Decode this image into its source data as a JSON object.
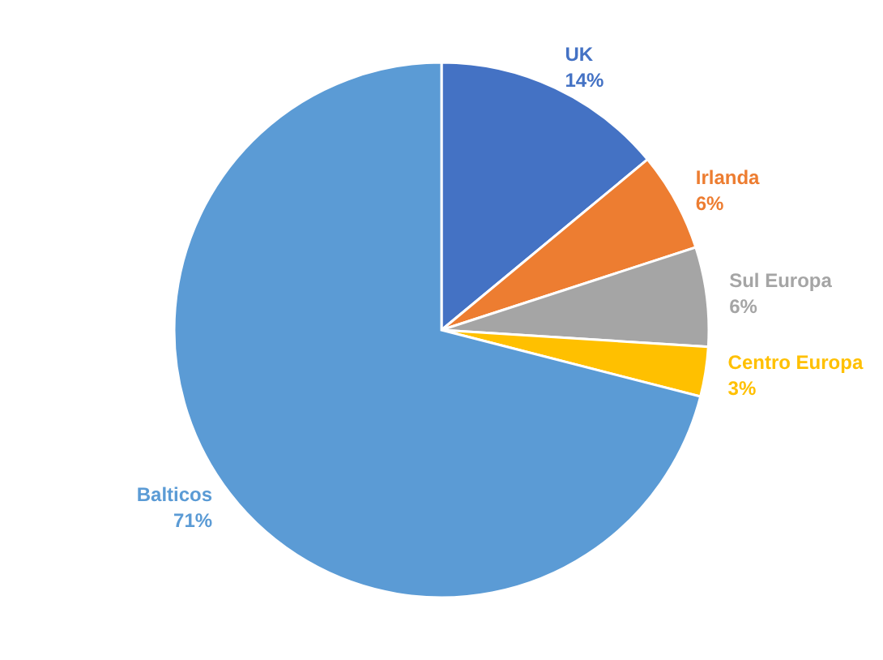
{
  "chart_data": {
    "type": "pie",
    "categories": [
      "UK",
      "Irlanda",
      "Sul Europa",
      "Centro Europa",
      "Balticos"
    ],
    "values": [
      14,
      6,
      6,
      3,
      71
    ],
    "colors": [
      "#4472c4",
      "#ed7d31",
      "#a5a5a5",
      "#ffc000",
      "#5b9bd5"
    ],
    "value_labels": [
      "14%",
      "6%",
      "6%",
      "3%",
      "71%"
    ],
    "legend": false
  }
}
